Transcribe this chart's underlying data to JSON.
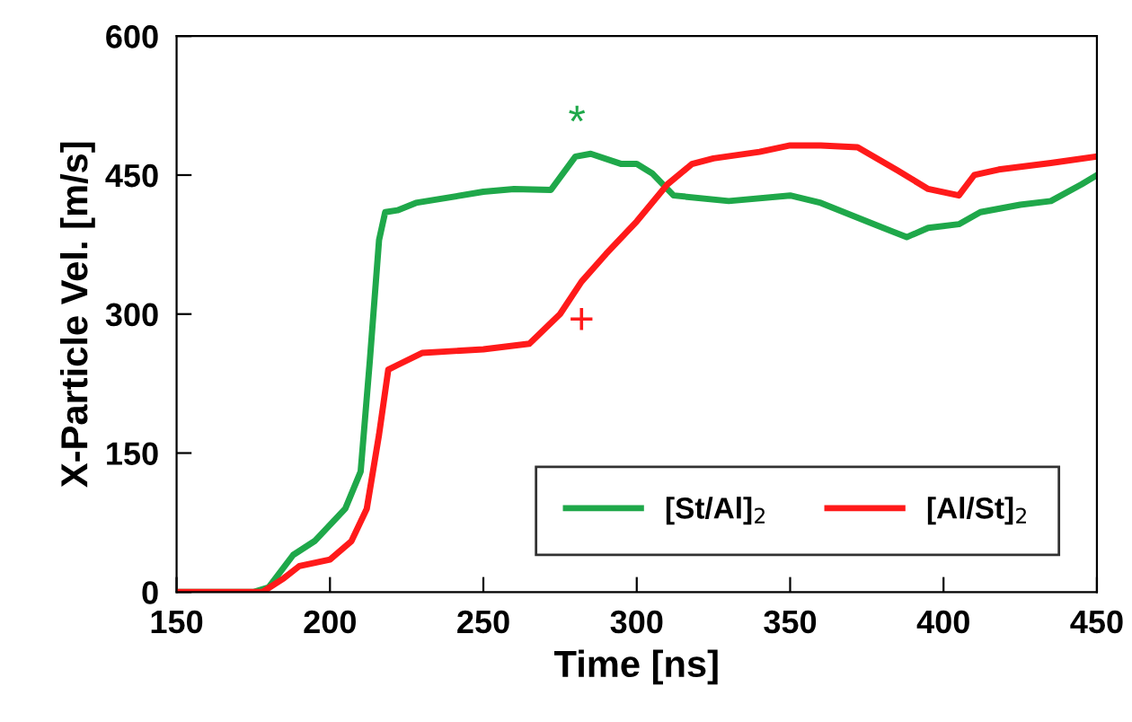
{
  "chart_data": {
    "type": "line",
    "xlabel": "Time [ns]",
    "ylabel": "X-Particle Vel. [m/s]",
    "xlim": [
      150,
      450
    ],
    "ylim": [
      0,
      600
    ],
    "xticks": [
      150,
      200,
      250,
      300,
      350,
      400,
      450
    ],
    "yticks": [
      0,
      150,
      300,
      450,
      600
    ],
    "grid": false,
    "legend": "bottom right",
    "line_style": "solid",
    "annotations": [
      "*",
      "+"
    ],
    "series": [
      {
        "name": "[St/Al]$_{2}$",
        "color": "#1fa84a",
        "x": [
          150,
          175,
          180,
          188,
          195,
          205,
          210,
          213,
          216,
          218,
          222,
          228,
          250,
          260,
          272,
          280,
          285,
          295,
          300,
          305,
          312,
          330,
          350,
          360,
          375,
          388,
          395,
          405,
          412,
          425,
          435,
          445,
          450
        ],
        "values": [
          0,
          0,
          5,
          40,
          55,
          90,
          130,
          250,
          380,
          410,
          412,
          420,
          432,
          435,
          434,
          470,
          473,
          462,
          462,
          452,
          428,
          422,
          428,
          420,
          400,
          383,
          393,
          397,
          410,
          418,
          422,
          440,
          450
        ]
      },
      {
        "name": "[Al/St]$_{2}$",
        "color": "#ff1a1a",
        "x": [
          150,
          178,
          185,
          190,
          200,
          207,
          212,
          216,
          219,
          222,
          230,
          250,
          265,
          275,
          282,
          290,
          300,
          310,
          318,
          325,
          340,
          350,
          360,
          372,
          385,
          395,
          405,
          410,
          418,
          435,
          450
        ],
        "values": [
          0,
          0,
          15,
          28,
          35,
          55,
          90,
          170,
          240,
          245,
          258,
          262,
          268,
          300,
          335,
          365,
          400,
          440,
          462,
          468,
          475,
          482,
          482,
          480,
          455,
          435,
          428,
          450,
          456,
          463,
          470
        ]
      }
    ]
  }
}
